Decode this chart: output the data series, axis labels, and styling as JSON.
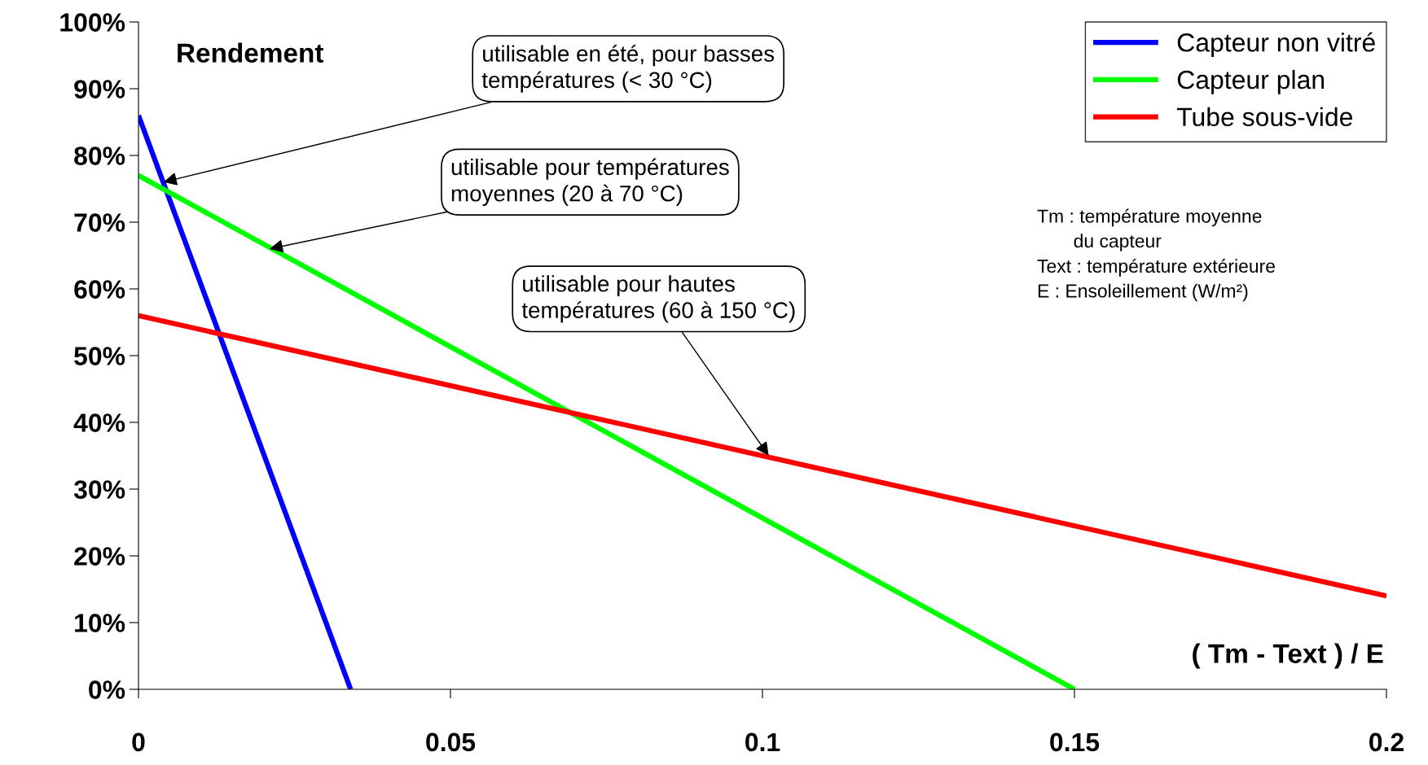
{
  "chart_data": {
    "type": "line",
    "ylabel": "Rendement",
    "xlabel": "( Tm - Text ) / E",
    "series": [
      {
        "name": "Capteur non vitré",
        "color": "#0000ff",
        "x": [
          0,
          0.034
        ],
        "values": [
          86,
          0
        ]
      },
      {
        "name": "Capteur plan",
        "color": "#00ff00",
        "x": [
          0,
          0.15
        ],
        "values": [
          77,
          0
        ]
      },
      {
        "name": "Tube sous-vide",
        "color": "#ff0000",
        "x": [
          0,
          0.2
        ],
        "values": [
          56,
          14
        ]
      }
    ],
    "xlim": [
      0,
      0.2
    ],
    "xticks": [
      0,
      0.05,
      0.1,
      0.15,
      0.2
    ],
    "ylim": [
      0,
      100
    ],
    "yticks": [
      {
        "value": 0,
        "label": "0%"
      },
      {
        "value": 10,
        "label": "10%"
      },
      {
        "value": 20,
        "label": "20%"
      },
      {
        "value": 30,
        "label": "30%"
      },
      {
        "value": 40,
        "label": "40%"
      },
      {
        "value": 50,
        "label": "50%"
      },
      {
        "value": 60,
        "label": "60%"
      },
      {
        "value": 70,
        "label": "70%"
      },
      {
        "value": 80,
        "label": "80%"
      },
      {
        "value": 90,
        "label": "90%"
      },
      {
        "value": 100,
        "label": "100%"
      }
    ],
    "annotations": [
      {
        "text": "utilisable en été, pour basses\ntempératures (< 30 °C)",
        "x": 0.004,
        "y": 76
      },
      {
        "text": "utilisable pour températures\nmoyennes (20 à 70 °C)",
        "x": 0.021,
        "y": 66
      },
      {
        "text": "utilisable pour hautes\ntempératures (60 à 150 °C)",
        "x": 0.101,
        "y": 35
      },
      "Tm : température moyenne\n       du capteur\nText : température extérieure\nE : Ensoleillement (W/m²)"
    ],
    "grid": false,
    "legend": "top right",
    "marker": "none",
    "line_style": "solid"
  }
}
